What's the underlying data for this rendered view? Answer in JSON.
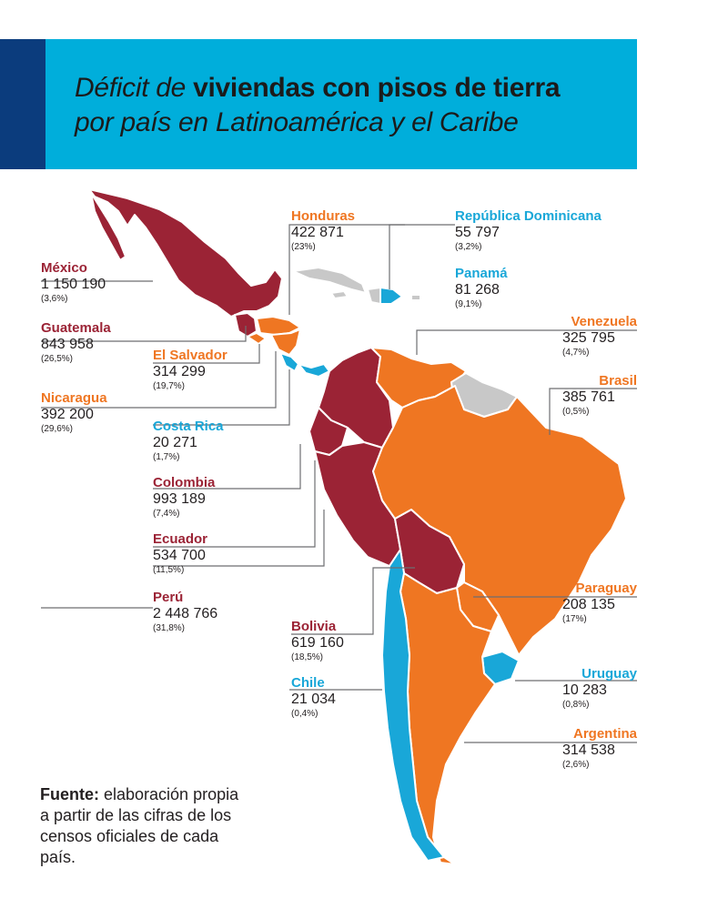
{
  "title": {
    "part1_italic": "Déficit de",
    "part1_bold": "viviendas con pisos de tierra",
    "part2_italic": "por país en Latinoamérica y el Caribe"
  },
  "colors": {
    "banner": "#00aedb",
    "stripe": "#0b3c7d",
    "dark_red": "#9b2335",
    "orange": "#ef7622",
    "light_blue": "#19a7d8",
    "no_data_gray": "#c8c8c8"
  },
  "countries": {
    "mexico": {
      "name": "México",
      "value": "1 150 190",
      "pct": "(3,6%)"
    },
    "guatemala": {
      "name": "Guatemala",
      "value": "843 958",
      "pct": "(26,5%)"
    },
    "el_salvador": {
      "name": "El Salvador",
      "value": "314 299",
      "pct": "(19,7%)"
    },
    "nicaragua": {
      "name": "Nicaragua",
      "value": "392 200",
      "pct": "(29,6%)"
    },
    "costa_rica": {
      "name": "Costa Rica",
      "value": "20 271",
      "pct": "(1,7%)"
    },
    "colombia": {
      "name": "Colombia",
      "value": "993 189",
      "pct": "(7,4%)"
    },
    "ecuador": {
      "name": "Ecuador",
      "value": "534 700",
      "pct": "(11,5%)"
    },
    "peru": {
      "name": "Perú",
      "value": "2 448 766",
      "pct": "(31,8%)"
    },
    "bolivia": {
      "name": "Bolivia",
      "value": "619 160",
      "pct": "(18,5%)"
    },
    "chile": {
      "name": "Chile",
      "value": "21 034",
      "pct": "(0,4%)"
    },
    "honduras": {
      "name": "Honduras",
      "value": "422 871",
      "pct": "(23%)"
    },
    "dominicana": {
      "name": "República Dominicana",
      "value": "55 797",
      "pct": "(3,2%)"
    },
    "panama": {
      "name": "Panamá",
      "value": "81 268",
      "pct": "(9,1%)"
    },
    "venezuela": {
      "name": "Venezuela",
      "value": "325 795",
      "pct": "(4,7%)"
    },
    "brasil": {
      "name": "Brasil",
      "value": "385 761",
      "pct": "(0,5%)"
    },
    "paraguay": {
      "name": "Paraguay",
      "value": "208 135",
      "pct": "(17%)"
    },
    "uruguay": {
      "name": "Uruguay",
      "value": "10 283",
      "pct": "(0,8%)"
    },
    "argentina": {
      "name": "Argentina",
      "value": "314 538",
      "pct": "(2,6%)"
    }
  },
  "source": {
    "bold": "Fuente:",
    "text": " elaboración propia a partir de las cifras de los censos oficiales de cada país."
  }
}
